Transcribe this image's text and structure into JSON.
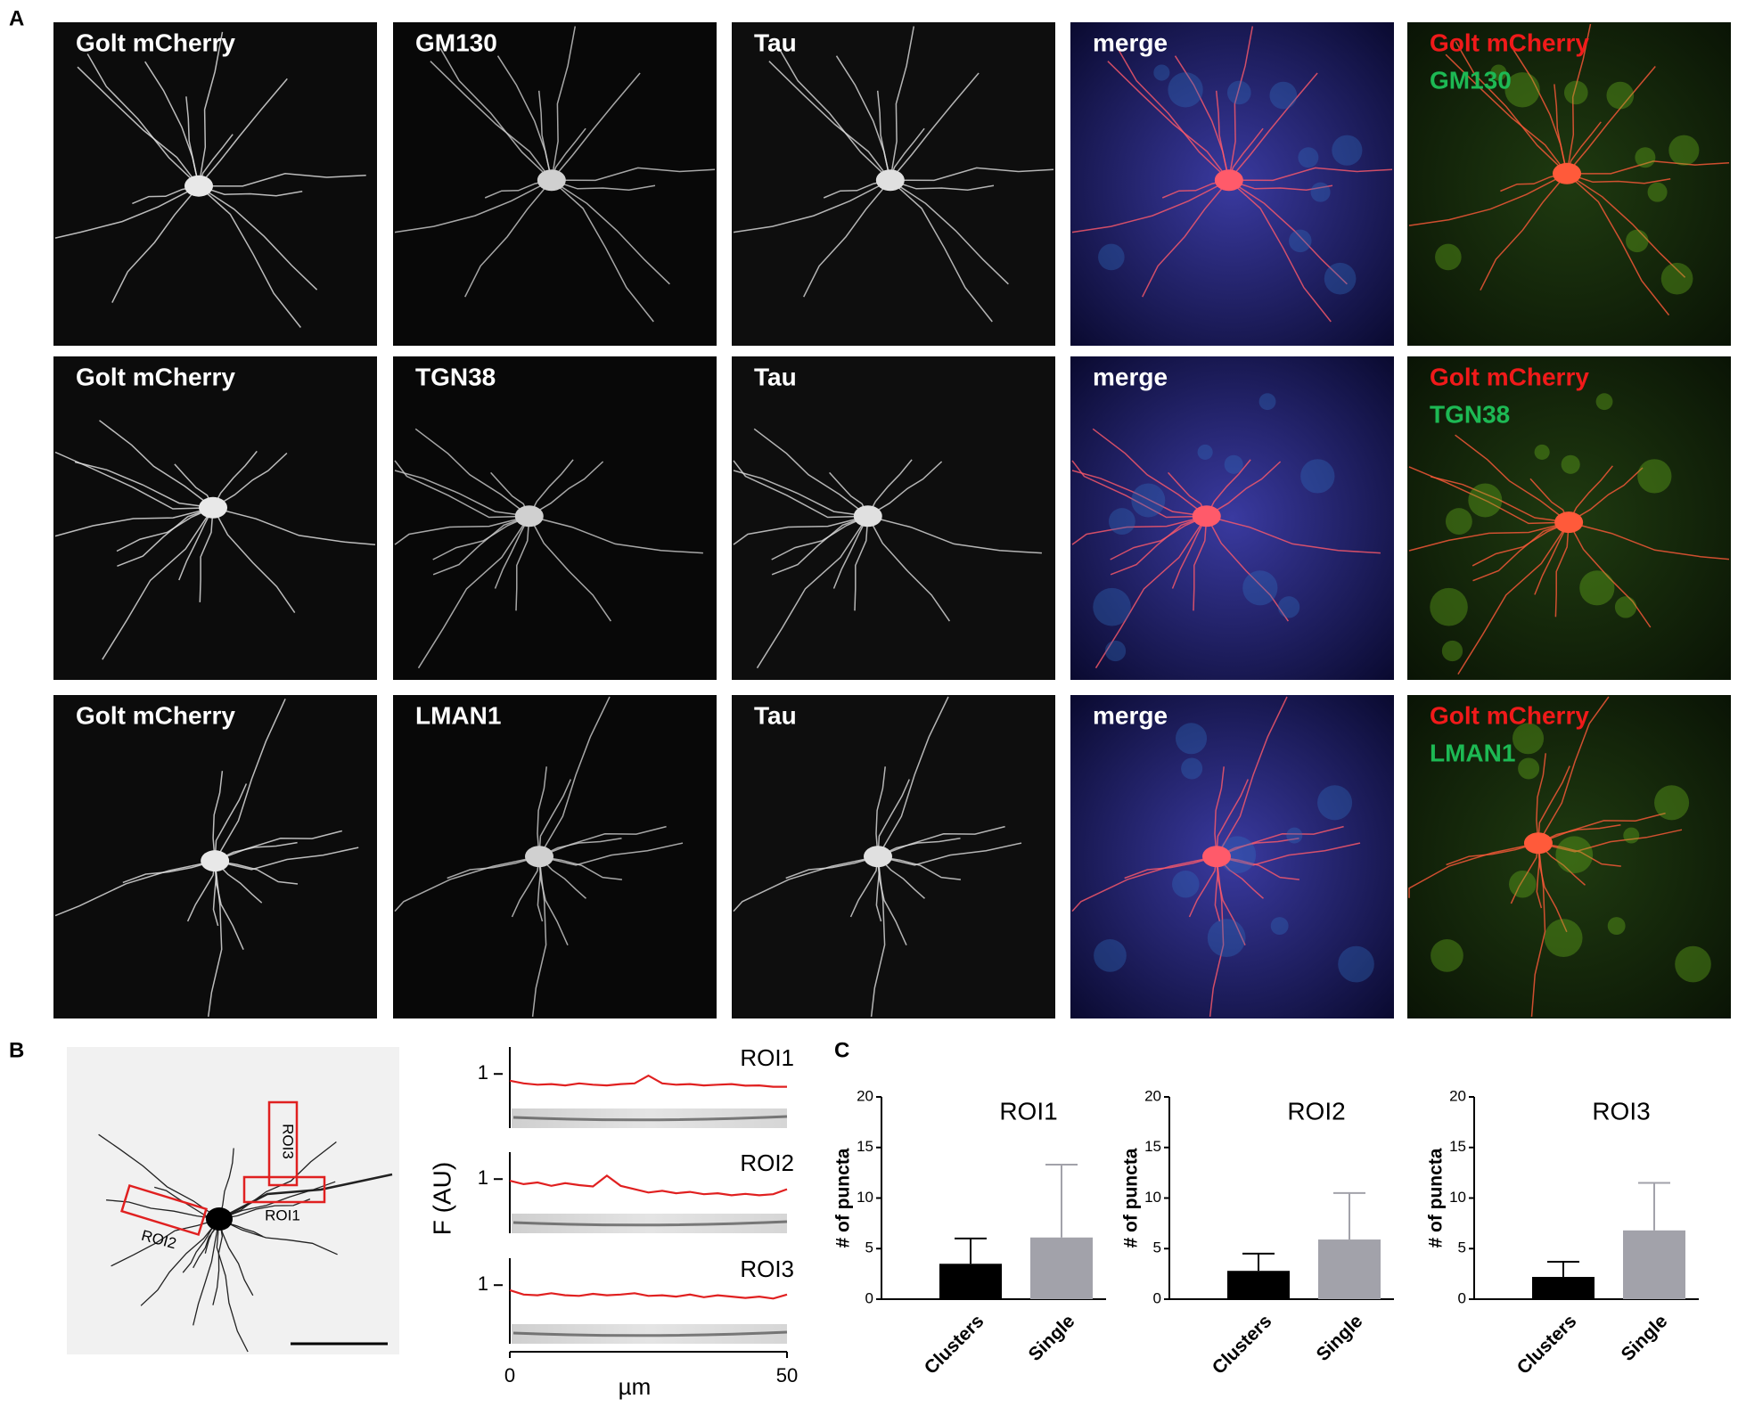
{
  "panel_labels": [
    "A",
    "B",
    "C"
  ],
  "panel_a": {
    "rows": [
      [
        [
          {
            "text": "Golt mCherry",
            "color": "#ffffff"
          }
        ],
        [
          {
            "text": "GM130",
            "color": "#ffffff"
          }
        ],
        [
          {
            "text": "Tau",
            "color": "#ffffff"
          }
        ],
        [
          {
            "text": "merge",
            "color": "#ffffff"
          }
        ],
        [
          {
            "text": "Golt mCherry",
            "color": "#f01a1a"
          },
          {
            "text": "GM130",
            "color": "#1db954"
          }
        ]
      ],
      [
        [
          {
            "text": "Golt mCherry",
            "color": "#ffffff"
          }
        ],
        [
          {
            "text": "TGN38",
            "color": "#ffffff"
          }
        ],
        [
          {
            "text": "Tau",
            "color": "#ffffff"
          }
        ],
        [
          {
            "text": "merge",
            "color": "#ffffff"
          }
        ],
        [
          {
            "text": "Golt mCherry",
            "color": "#f01a1a"
          },
          {
            "text": "TGN38",
            "color": "#1db954"
          }
        ]
      ],
      [
        [
          {
            "text": "Golt mCherry",
            "color": "#ffffff"
          }
        ],
        [
          {
            "text": "LMAN1",
            "color": "#ffffff"
          }
        ],
        [
          {
            "text": "Tau",
            "color": "#ffffff"
          }
        ],
        [
          {
            "text": "merge",
            "color": "#ffffff"
          }
        ],
        [
          {
            "text": "Golt mCherry",
            "color": "#f01a1a"
          },
          {
            "text": "LMAN1",
            "color": "#1db954"
          }
        ]
      ]
    ]
  },
  "panel_b_image": {
    "roi_labels": [
      "ROI1",
      "ROI2",
      "ROI3"
    ]
  },
  "chart_data": [
    {
      "type": "line",
      "ylabel": "F (AU)",
      "xlabel": "µm",
      "x": [
        0,
        2.5,
        5,
        7.5,
        10,
        12.5,
        15,
        17.5,
        20,
        22.5,
        25,
        27.5,
        30,
        32.5,
        35,
        37.5,
        40,
        42.5,
        45,
        47.5,
        50
      ],
      "xlim": [
        0,
        50
      ],
      "xticks": [
        0,
        50
      ],
      "ylim": [
        0,
        1.8
      ],
      "yticks": [
        1
      ],
      "series": [
        {
          "name": "ROI1",
          "color": "#e02020",
          "values": [
            0.8,
            0.72,
            0.68,
            0.7,
            0.66,
            0.72,
            0.68,
            0.66,
            0.7,
            0.72,
            0.95,
            0.72,
            0.68,
            0.7,
            0.66,
            0.68,
            0.7,
            0.65,
            0.66,
            0.62,
            0.62
          ]
        },
        {
          "name": "ROI2",
          "color": "#e02020",
          "values": [
            0.95,
            0.85,
            0.9,
            0.8,
            0.88,
            0.82,
            0.78,
            1.1,
            0.8,
            0.7,
            0.6,
            0.65,
            0.58,
            0.62,
            0.55,
            0.58,
            0.52,
            0.56,
            0.52,
            0.55,
            0.7
          ]
        },
        {
          "name": "ROI3",
          "color": "#e02020",
          "values": [
            0.85,
            0.72,
            0.7,
            0.76,
            0.7,
            0.68,
            0.74,
            0.7,
            0.72,
            0.76,
            0.68,
            0.7,
            0.66,
            0.72,
            0.64,
            0.7,
            0.66,
            0.62,
            0.66,
            0.6,
            0.72
          ]
        }
      ]
    },
    {
      "type": "bar",
      "title": "ROI1",
      "ylabel": "# of puncta",
      "categories": [
        "Clusters",
        "Single"
      ],
      "values": [
        3.5,
        6.1
      ],
      "errors": [
        2.5,
        7.2
      ],
      "colors": [
        "#000000",
        "#a2a2aa"
      ],
      "ylim": [
        0,
        20
      ],
      "yticks": [
        0,
        5,
        10,
        15,
        20
      ]
    },
    {
      "type": "bar",
      "title": "ROI2",
      "ylabel": "# of puncta",
      "categories": [
        "Clusters",
        "Single"
      ],
      "values": [
        2.8,
        5.9
      ],
      "errors": [
        1.7,
        4.6
      ],
      "colors": [
        "#000000",
        "#a2a2aa"
      ],
      "ylim": [
        0,
        20
      ],
      "yticks": [
        0,
        5,
        10,
        15,
        20
      ]
    },
    {
      "type": "bar",
      "title": "ROI3",
      "ylabel": "# of puncta",
      "categories": [
        "Clusters",
        "Single"
      ],
      "values": [
        2.2,
        6.8
      ],
      "errors": [
        1.5,
        4.7
      ],
      "colors": [
        "#000000",
        "#a2a2aa"
      ],
      "ylim": [
        0,
        20
      ],
      "yticks": [
        0,
        5,
        10,
        15,
        20
      ]
    }
  ]
}
